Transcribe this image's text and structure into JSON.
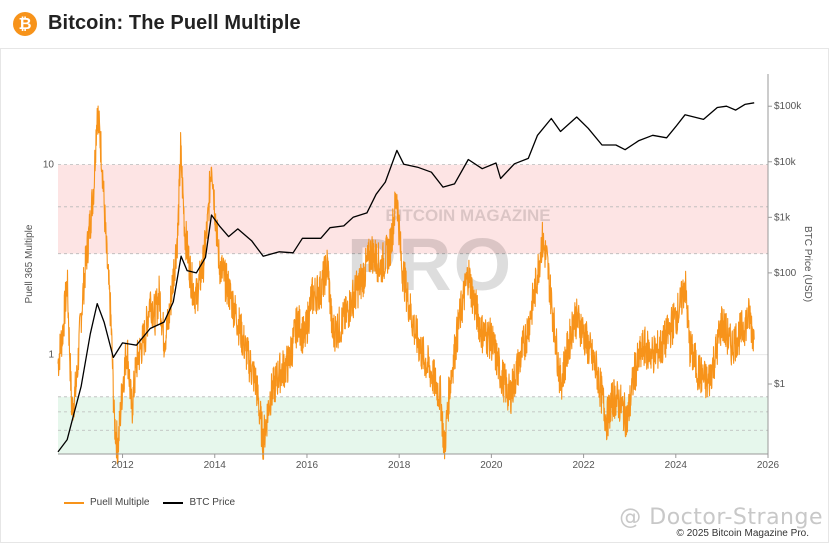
{
  "header": {
    "title": "Bitcoin: The Puell Multiple",
    "icon": "bitcoin-icon",
    "icon_glyph": "₿",
    "icon_color": "#f7931a"
  },
  "watermark": {
    "line1": "BITCOIN MAGAZINE",
    "line2": "PRO"
  },
  "credit": "@ Doctor-Strange",
  "copyright": "© 2025 Bitcoin Magazine Pro.",
  "chart_data": {
    "type": "line",
    "ylabel_left": "Puell 365 Multiple",
    "ylabel_right": "BTC Price (USD)",
    "left_scale": "log",
    "right_scale": "log",
    "xlim": [
      2010.6,
      2026.0
    ],
    "ylim_left": [
      0.3,
      30
    ],
    "ylim_right": [
      0.055,
      380000
    ],
    "x_ticks": [
      "2012",
      "2014",
      "2016",
      "2018",
      "2020",
      "2022",
      "2024",
      "2026"
    ],
    "y_ticks_left": [
      "1",
      "10"
    ],
    "y_ticks_right": [
      "$1",
      "$100",
      "$1k",
      "$10k",
      "$100k"
    ],
    "bands": [
      {
        "name": "high",
        "from": 3.4,
        "to": 10.0,
        "color": "#fde4e4"
      },
      {
        "name": "low",
        "from": 0.3,
        "to": 0.6,
        "color": "#e6f7ec"
      }
    ],
    "band_lines": [
      0.3,
      0.4,
      0.5,
      0.6,
      3.4,
      6.0,
      10.0
    ],
    "series": [
      {
        "name": "Puell Multiple",
        "color": "#f7931a",
        "axis": "left",
        "points": [
          [
            2010.6,
            0.9
          ],
          [
            2010.7,
            1.3
          ],
          [
            2010.8,
            2.4
          ],
          [
            2010.9,
            0.5
          ],
          [
            2011.0,
            0.7
          ],
          [
            2011.1,
            1.6
          ],
          [
            2011.2,
            3.0
          ],
          [
            2011.3,
            5.0
          ],
          [
            2011.38,
            8.0
          ],
          [
            2011.45,
            20.0
          ],
          [
            2011.55,
            11.0
          ],
          [
            2011.65,
            3.5
          ],
          [
            2011.75,
            1.5
          ],
          [
            2011.82,
            0.45
          ],
          [
            2011.9,
            0.32
          ],
          [
            2012.0,
            0.7
          ],
          [
            2012.1,
            1.1
          ],
          [
            2012.2,
            0.5
          ],
          [
            2012.3,
            0.9
          ],
          [
            2012.5,
            1.3
          ],
          [
            2012.6,
            2.0
          ],
          [
            2012.7,
            1.6
          ],
          [
            2012.8,
            2.1
          ],
          [
            2012.9,
            1.2
          ],
          [
            2013.0,
            1.5
          ],
          [
            2013.1,
            2.6
          ],
          [
            2013.2,
            4.4
          ],
          [
            2013.26,
            12.0
          ],
          [
            2013.35,
            4.5
          ],
          [
            2013.5,
            2.4
          ],
          [
            2013.6,
            2.0
          ],
          [
            2013.75,
            3.0
          ],
          [
            2013.85,
            5.0
          ],
          [
            2013.93,
            11.0
          ],
          [
            2014.0,
            6.0
          ],
          [
            2014.1,
            3.0
          ],
          [
            2014.3,
            2.2
          ],
          [
            2014.5,
            1.5
          ],
          [
            2014.7,
            1.0
          ],
          [
            2014.9,
            0.7
          ],
          [
            2015.05,
            0.35
          ],
          [
            2015.2,
            0.6
          ],
          [
            2015.4,
            0.8
          ],
          [
            2015.6,
            0.9
          ],
          [
            2015.8,
            1.5
          ],
          [
            2015.95,
            1.2
          ],
          [
            2016.1,
            2.0
          ],
          [
            2016.3,
            2.2
          ],
          [
            2016.45,
            3.0
          ],
          [
            2016.55,
            1.3
          ],
          [
            2016.7,
            1.4
          ],
          [
            2016.85,
            1.6
          ],
          [
            2017.0,
            2.0
          ],
          [
            2017.2,
            2.5
          ],
          [
            2017.4,
            3.5
          ],
          [
            2017.6,
            2.9
          ],
          [
            2017.8,
            3.6
          ],
          [
            2017.95,
            7.0
          ],
          [
            2018.05,
            3.0
          ],
          [
            2018.2,
            1.9
          ],
          [
            2018.35,
            1.3
          ],
          [
            2018.5,
            1.0
          ],
          [
            2018.7,
            0.8
          ],
          [
            2018.9,
            0.6
          ],
          [
            2018.98,
            0.32
          ],
          [
            2019.1,
            0.7
          ],
          [
            2019.3,
            1.5
          ],
          [
            2019.5,
            2.7
          ],
          [
            2019.6,
            2.0
          ],
          [
            2019.8,
            1.3
          ],
          [
            2020.0,
            1.2
          ],
          [
            2020.2,
            0.8
          ],
          [
            2020.4,
            0.6
          ],
          [
            2020.6,
            0.9
          ],
          [
            2020.8,
            1.4
          ],
          [
            2020.95,
            2.2
          ],
          [
            2021.1,
            4.0
          ],
          [
            2021.2,
            3.2
          ],
          [
            2021.35,
            1.5
          ],
          [
            2021.5,
            0.7
          ],
          [
            2021.7,
            1.2
          ],
          [
            2021.8,
            1.6
          ],
          [
            2021.95,
            1.4
          ],
          [
            2022.1,
            1.1
          ],
          [
            2022.3,
            0.8
          ],
          [
            2022.5,
            0.45
          ],
          [
            2022.65,
            0.6
          ],
          [
            2022.8,
            0.55
          ],
          [
            2022.95,
            0.45
          ],
          [
            2023.1,
            0.8
          ],
          [
            2023.3,
            1.1
          ],
          [
            2023.5,
            1.0
          ],
          [
            2023.7,
            1.1
          ],
          [
            2023.9,
            1.4
          ],
          [
            2024.1,
            1.8
          ],
          [
            2024.2,
            2.4
          ],
          [
            2024.3,
            1.1
          ],
          [
            2024.5,
            0.8
          ],
          [
            2024.7,
            0.7
          ],
          [
            2024.9,
            1.1
          ],
          [
            2025.0,
            1.5
          ],
          [
            2025.2,
            1.1
          ],
          [
            2025.4,
            1.3
          ],
          [
            2025.6,
            1.6
          ],
          [
            2025.7,
            1.2
          ]
        ]
      },
      {
        "name": "BTC Price",
        "color": "#000000",
        "axis": "right",
        "points": [
          [
            2010.6,
            0.06
          ],
          [
            2010.8,
            0.1
          ],
          [
            2010.95,
            0.3
          ],
          [
            2011.1,
            0.9
          ],
          [
            2011.3,
            8.0
          ],
          [
            2011.45,
            28.0
          ],
          [
            2011.6,
            13.0
          ],
          [
            2011.8,
            3.0
          ],
          [
            2012.0,
            5.5
          ],
          [
            2012.3,
            5.0
          ],
          [
            2012.6,
            10.0
          ],
          [
            2012.9,
            13.0
          ],
          [
            2013.1,
            30.0
          ],
          [
            2013.27,
            200.0
          ],
          [
            2013.4,
            110.0
          ],
          [
            2013.6,
            100.0
          ],
          [
            2013.8,
            190.0
          ],
          [
            2013.93,
            1100.0
          ],
          [
            2014.1,
            700.0
          ],
          [
            2014.3,
            450.0
          ],
          [
            2014.5,
            620.0
          ],
          [
            2014.8,
            380.0
          ],
          [
            2015.05,
            200.0
          ],
          [
            2015.4,
            240.0
          ],
          [
            2015.7,
            230.0
          ],
          [
            2015.9,
            420.0
          ],
          [
            2016.3,
            420.0
          ],
          [
            2016.5,
            650.0
          ],
          [
            2016.8,
            700.0
          ],
          [
            2017.0,
            1000.0
          ],
          [
            2017.3,
            1200.0
          ],
          [
            2017.5,
            2600.0
          ],
          [
            2017.7,
            4300.0
          ],
          [
            2017.95,
            16000.0
          ],
          [
            2018.1,
            9000.0
          ],
          [
            2018.4,
            8000.0
          ],
          [
            2018.7,
            6500.0
          ],
          [
            2018.95,
            3500.0
          ],
          [
            2019.2,
            4000.0
          ],
          [
            2019.5,
            11000.0
          ],
          [
            2019.8,
            7500.0
          ],
          [
            2020.1,
            9500.0
          ],
          [
            2020.2,
            5000.0
          ],
          [
            2020.5,
            9200.0
          ],
          [
            2020.8,
            11500.0
          ],
          [
            2021.0,
            30000.0
          ],
          [
            2021.3,
            60000.0
          ],
          [
            2021.5,
            35000.0
          ],
          [
            2021.85,
            64000.0
          ],
          [
            2022.1,
            40000.0
          ],
          [
            2022.4,
            20000.0
          ],
          [
            2022.7,
            20000.0
          ],
          [
            2022.9,
            16500.0
          ],
          [
            2023.2,
            24000.0
          ],
          [
            2023.5,
            30000.0
          ],
          [
            2023.8,
            27000.0
          ],
          [
            2024.0,
            43000.0
          ],
          [
            2024.2,
            70000.0
          ],
          [
            2024.6,
            58000.0
          ],
          [
            2024.9,
            95000.0
          ],
          [
            2025.1,
            100000.0
          ],
          [
            2025.3,
            85000.0
          ],
          [
            2025.5,
            108000.0
          ],
          [
            2025.7,
            115000.0
          ]
        ]
      }
    ]
  }
}
